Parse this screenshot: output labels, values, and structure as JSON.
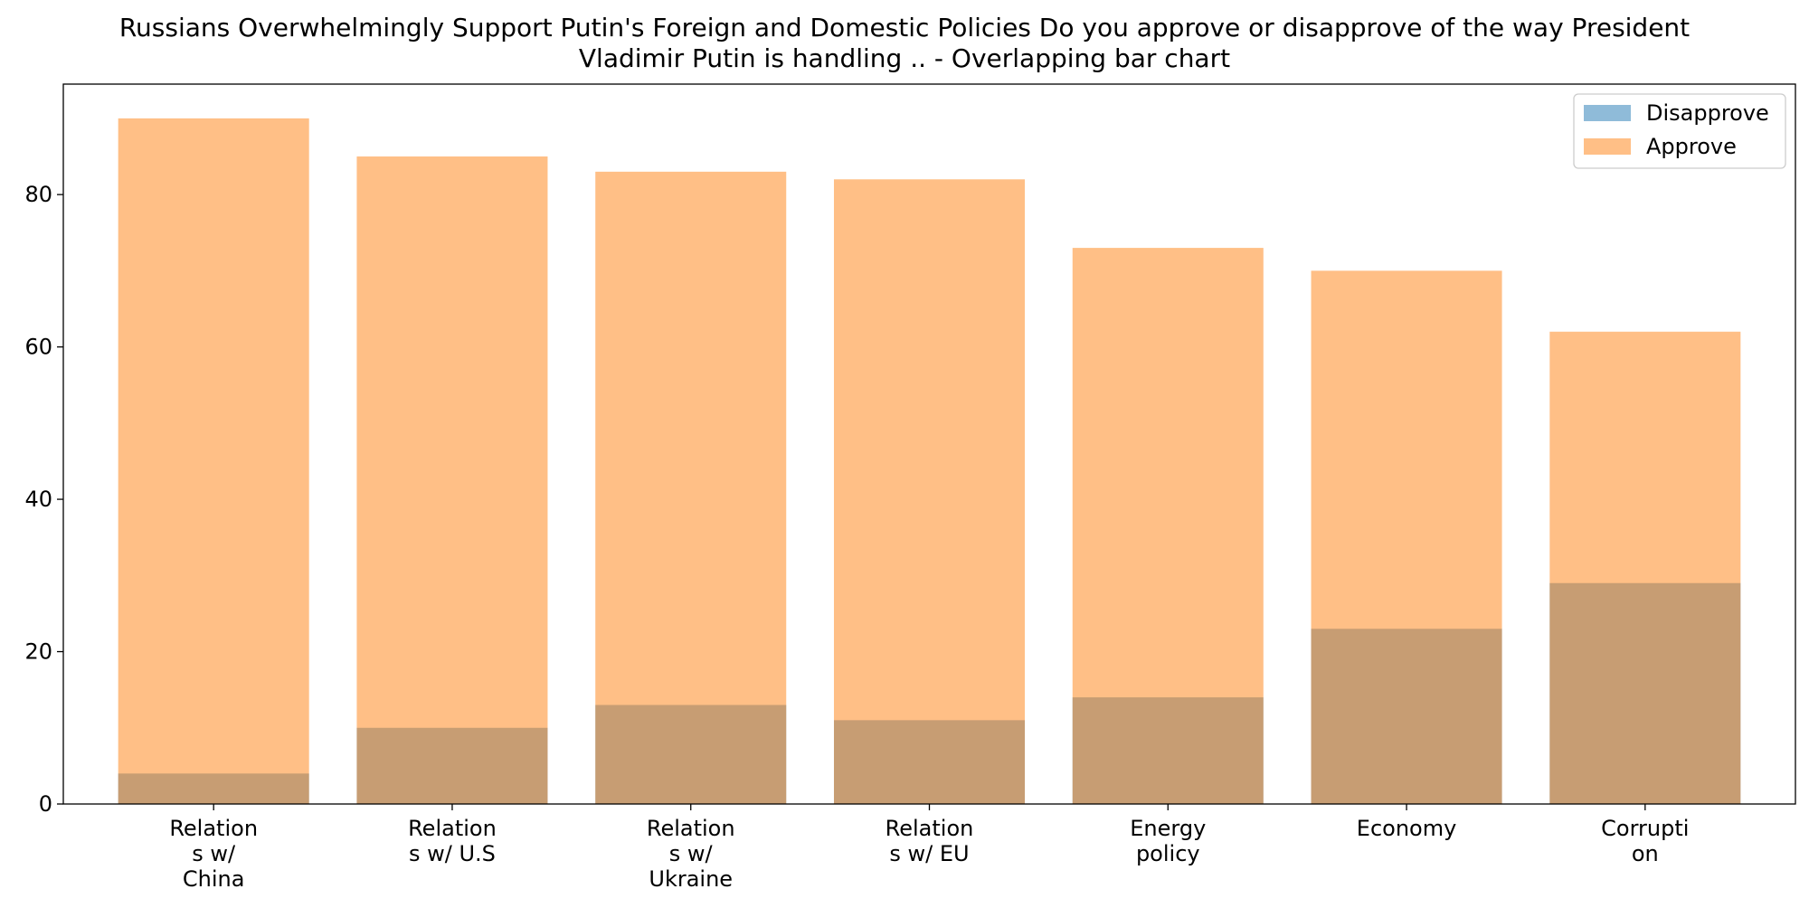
{
  "chart_data": {
    "type": "bar",
    "title": "Russians Overwhelmingly Support Putin's Foreign and Domestic Policies Do you approve or disapprove of the way President Vladimir Putin is handling ..  - Overlapping bar chart",
    "title_lines": [
      "Russians Overwhelmingly Support Putin's Foreign and Domestic Policies Do you approve or disapprove of the way President",
      "Vladimir Putin is handling ..  - Overlapping bar chart"
    ],
    "xlabel": "",
    "ylabel": "",
    "ylim": [
      0,
      94.5
    ],
    "yticks": [
      0,
      20,
      40,
      60,
      80
    ],
    "grid": false,
    "legend_position": "top-right",
    "categories": [
      [
        "Relation",
        "s w/",
        "China"
      ],
      [
        "Relation",
        "s w/ U.S"
      ],
      [
        "Relation",
        "s w/",
        "Ukraine"
      ],
      [
        "Relation",
        "s w/ EU"
      ],
      [
        "Energy",
        "policy"
      ],
      [
        "Economy"
      ],
      [
        "Corrupti",
        "on"
      ]
    ],
    "series": [
      {
        "name": "Disapprove",
        "color": "#1f77b4",
        "opacity": 0.5,
        "values": [
          4,
          10,
          13,
          11,
          14,
          23,
          29
        ]
      },
      {
        "name": "Approve",
        "color": "#ff7f0e",
        "opacity": 0.5,
        "values": [
          90,
          85,
          83,
          82,
          73,
          70,
          62
        ]
      }
    ]
  }
}
